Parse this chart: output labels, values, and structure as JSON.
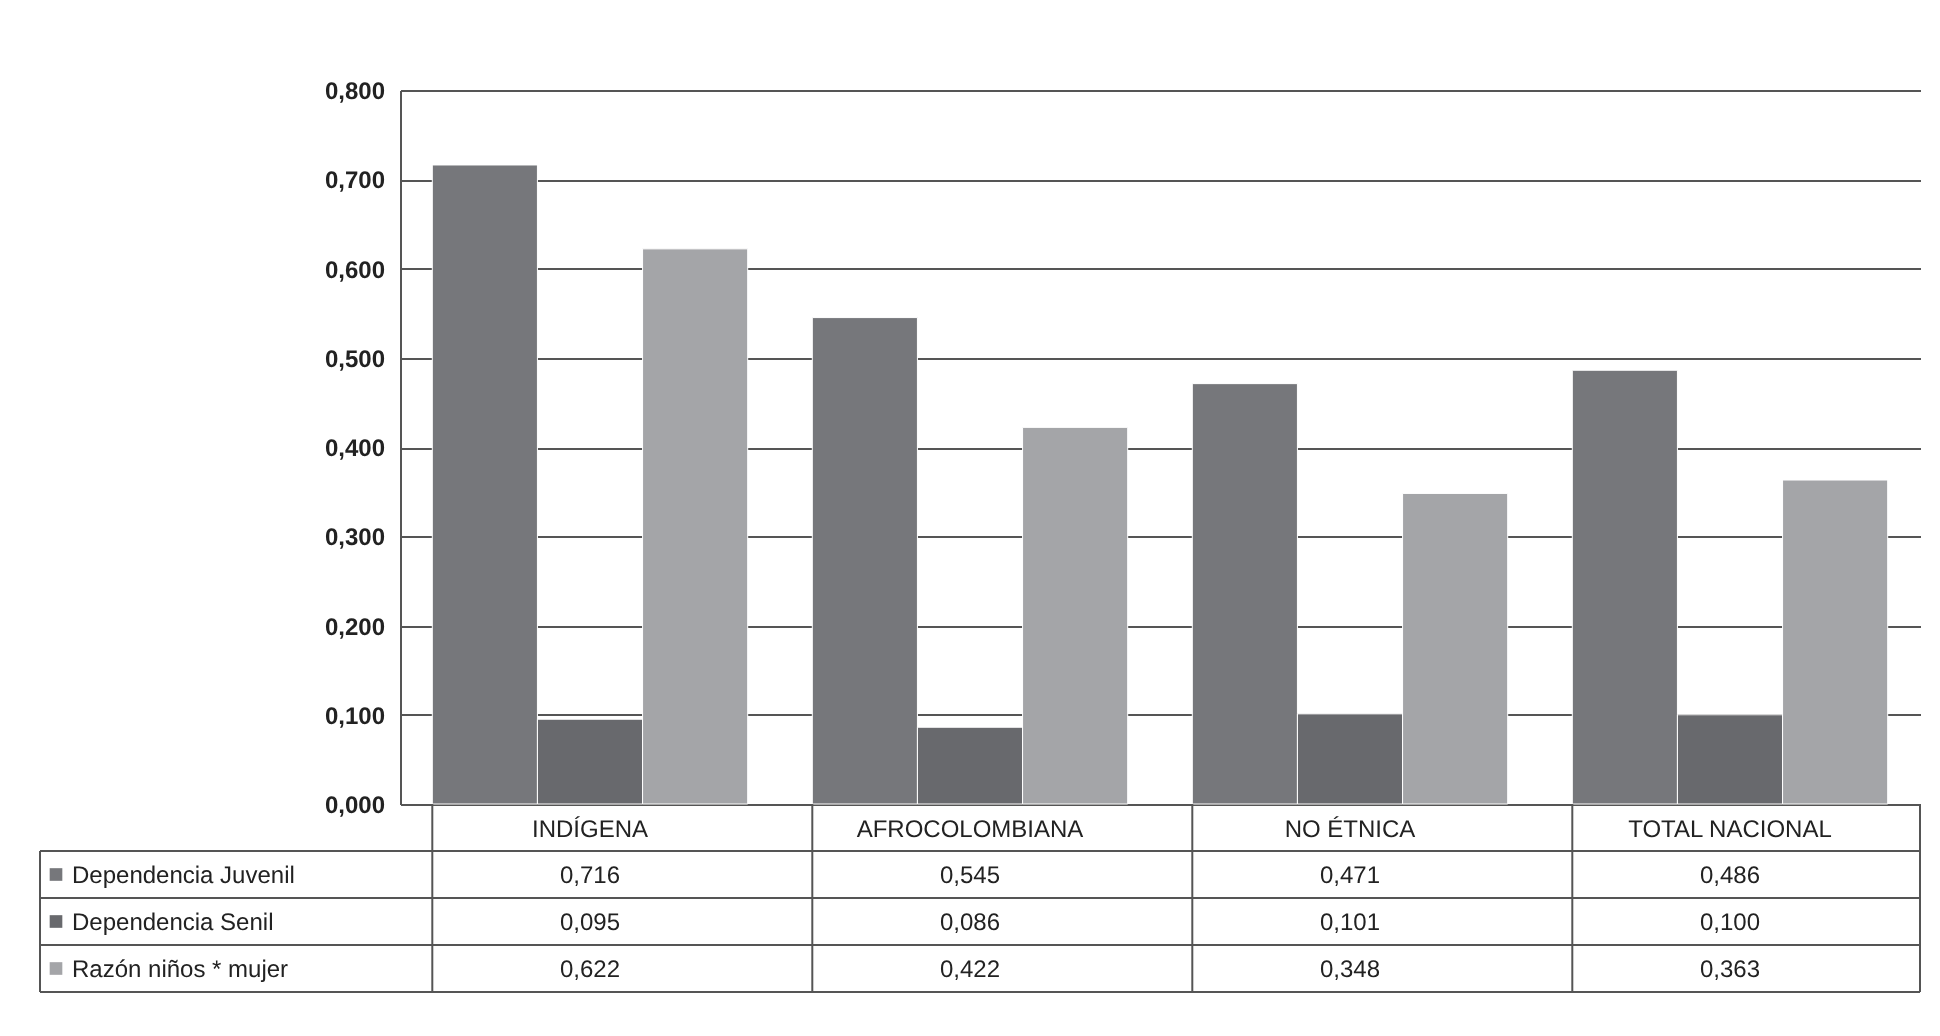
{
  "chart_data": {
    "type": "bar",
    "categories": [
      "INDÍGENA",
      "AFROCOLOMBIANA",
      "NO ÉTNICA",
      "TOTAL NACIONAL"
    ],
    "series": [
      {
        "name": "Dependencia Juvenil",
        "color": "#76777b",
        "values": [
          0.716,
          0.545,
          0.471,
          0.486
        ],
        "value_labels": [
          "0,716",
          "0,545",
          "0,471",
          "0,486"
        ]
      },
      {
        "name": "Dependencia Senil",
        "color": "#68696d",
        "values": [
          0.095,
          0.086,
          0.101,
          0.1
        ],
        "value_labels": [
          "0,095",
          "0,086",
          "0,101",
          "0,100"
        ]
      },
      {
        "name": "Razón niños * mujer",
        "color": "#a4a5a8",
        "values": [
          0.622,
          0.422,
          0.348,
          0.363
        ],
        "value_labels": [
          "0,622",
          "0,422",
          "0,348",
          "0,363"
        ]
      }
    ],
    "ylim": [
      0,
      0.8
    ],
    "yticks": [
      {
        "value": 0,
        "label": "0,000"
      },
      {
        "value": 0.1,
        "label": "0,100"
      },
      {
        "value": 0.2,
        "label": "0,200"
      },
      {
        "value": 0.3,
        "label": "0,300"
      },
      {
        "value": 0.4,
        "label": "0,400"
      },
      {
        "value": 0.5,
        "label": "0,500"
      },
      {
        "value": 0.6,
        "label": "0,600"
      },
      {
        "value": 0.7,
        "label": "0,700"
      },
      {
        "value": 0.8,
        "label": "0,800"
      }
    ],
    "grid": "y",
    "legend": "bottom left"
  }
}
